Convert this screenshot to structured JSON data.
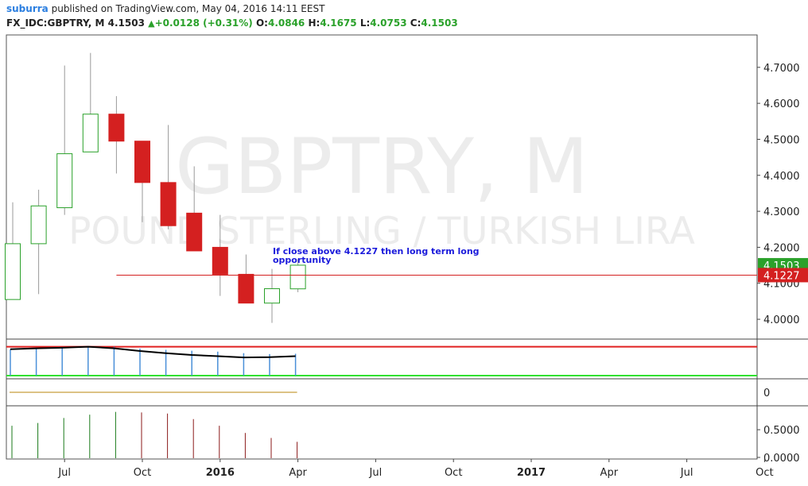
{
  "header": {
    "author": "suburra",
    "published_text": "published on TradingView.com, May 04, 2016 14:11 EEST",
    "symbol": "FX_IDC:GBPTRY, M",
    "last": "4.1503",
    "change_arrow": "▲",
    "change": "+0.0128 (+0.31%)",
    "o_label": "O:",
    "o_val": "4.0846",
    "h_label": "H:",
    "h_val": "4.1675",
    "l_label": "L:",
    "l_val": "4.0753",
    "c_label": "C:",
    "c_val": "4.1503"
  },
  "watermark": {
    "line1": "GBPTRY, M",
    "line2": "POUND STERLING / TURKISH LIRA"
  },
  "colors": {
    "up": "#2aa12a",
    "down": "#d42020",
    "level": "#d42020",
    "annotation": "#1a1adb",
    "osc_hist": "#4a90d9",
    "osc_line": "#000000",
    "osc_upper": "#e02020",
    "osc_lower": "#30e030",
    "vol_up": "#1a7a1a",
    "vol_down": "#8b1a1a",
    "zero_line": "#b8860b"
  },
  "chart_data": {
    "type": "candlestick",
    "timeframe": "M",
    "candles": [
      {
        "date": "2015-05",
        "o": 4.055,
        "h": 4.325,
        "l": 4.055,
        "c": 4.21
      },
      {
        "date": "2015-06",
        "o": 4.21,
        "h": 4.36,
        "l": 4.07,
        "c": 4.315
      },
      {
        "date": "2015-07",
        "o": 4.31,
        "h": 4.705,
        "l": 4.29,
        "c": 4.46
      },
      {
        "date": "2015-08",
        "o": 4.465,
        "h": 4.74,
        "l": 4.465,
        "c": 4.57
      },
      {
        "date": "2015-09",
        "o": 4.57,
        "h": 4.62,
        "l": 4.405,
        "c": 4.495
      },
      {
        "date": "2015-10",
        "o": 4.495,
        "h": 4.495,
        "l": 4.27,
        "c": 4.38
      },
      {
        "date": "2015-11",
        "o": 4.38,
        "h": 4.54,
        "l": 4.25,
        "c": 4.26
      },
      {
        "date": "2015-12",
        "o": 4.295,
        "h": 4.425,
        "l": 4.19,
        "c": 4.19
      },
      {
        "date": "2016-01",
        "o": 4.2,
        "h": 4.29,
        "l": 4.065,
        "c": 4.125
      },
      {
        "date": "2016-02",
        "o": 4.125,
        "h": 4.18,
        "l": 4.045,
        "c": 4.045
      },
      {
        "date": "2016-03",
        "o": 4.045,
        "h": 4.14,
        "l": 3.99,
        "c": 4.085
      },
      {
        "date": "2016-04",
        "o": 4.0846,
        "h": 4.1675,
        "l": 4.0753,
        "c": 4.1503
      }
    ],
    "price_axis": {
      "ticks": [
        "4.7000",
        "4.6000",
        "4.5000",
        "4.4000",
        "4.3000",
        "4.2000",
        "4.1000",
        "4.0000"
      ],
      "ylim": [
        3.945,
        4.79
      ]
    },
    "time_axis": {
      "labels": [
        {
          "date": "2015-07",
          "text": "Jul",
          "bold": false
        },
        {
          "date": "2015-10",
          "text": "Oct",
          "bold": false
        },
        {
          "date": "2016-01",
          "text": "2016",
          "bold": true
        },
        {
          "date": "2016-04",
          "text": "Apr",
          "bold": false
        },
        {
          "date": "2016-07",
          "text": "Jul",
          "bold": false
        },
        {
          "date": "2016-10",
          "text": "Oct",
          "bold": false
        },
        {
          "date": "2017-01",
          "text": "2017",
          "bold": true
        },
        {
          "date": "2017-04",
          "text": "Apr",
          "bold": false
        },
        {
          "date": "2017-07",
          "text": "Jul",
          "bold": false
        },
        {
          "date": "2017-10",
          "text": "Oct",
          "bold": false
        }
      ]
    },
    "horizontal_level": {
      "value": 4.1227,
      "label": "4.1227",
      "start_date": "2015-09"
    },
    "last_price_label": "4.1503",
    "annotation": {
      "line1": "If close above 4.1227 then long term long",
      "line2": "opportunity"
    },
    "oscillator": {
      "hist": [
        0.92,
        0.95,
        0.97,
        0.99,
        1.0,
        0.94,
        0.9,
        0.87,
        0.84,
        0.79,
        0.76,
        0.77
      ],
      "line": [
        0.92,
        0.95,
        0.97,
        1.0,
        0.95,
        0.86,
        0.79,
        0.73,
        0.69,
        0.65,
        0.66,
        0.69
      ],
      "ylim": [
        0,
        1.2
      ],
      "upper_level": 1.0,
      "lower_level": 0.0
    },
    "zero_panel": {
      "tick": "0",
      "value": 0
    },
    "volume": {
      "values": [
        0.6,
        0.65,
        0.74,
        0.8,
        0.85,
        0.84,
        0.82,
        0.72,
        0.6,
        0.47,
        0.38,
        0.31
      ],
      "directions": [
        "up",
        "up",
        "up",
        "up",
        "up",
        "down",
        "down",
        "down",
        "down",
        "down",
        "down",
        "down"
      ],
      "ticks": [
        "0.5000",
        "0.0000"
      ],
      "ylim": [
        0,
        0.96
      ]
    }
  }
}
